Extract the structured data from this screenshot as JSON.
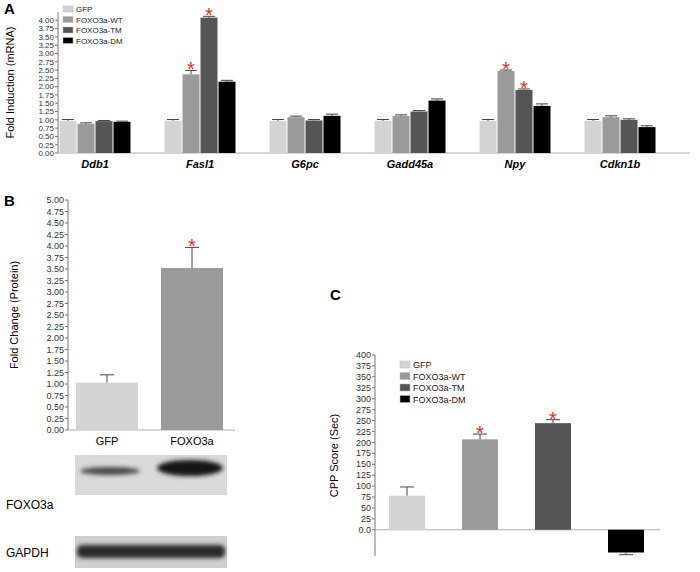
{
  "chart_data": [
    {
      "type": "bar",
      "title": "A",
      "categories": [
        "Ddb1",
        "Fasl1",
        "G6pc",
        "Gadd45a",
        "Npy",
        "Cdkn1b"
      ],
      "series": [
        {
          "name": "GFP",
          "color": "#d3d3d3",
          "values": [
            0.97,
            0.97,
            0.97,
            0.97,
            0.97,
            0.97
          ],
          "errors": [
            0.04,
            0.04,
            0.04,
            0.04,
            0.04,
            0.04
          ]
        },
        {
          "name": "FOXO3a-WT",
          "color": "#9a9a9a",
          "values": [
            0.88,
            2.37,
            1.08,
            1.12,
            2.47,
            1.08
          ],
          "errors": [
            0.03,
            0.12,
            0.03,
            0.03,
            0.03,
            0.04
          ]
        },
        {
          "name": "FOXO3a-TM",
          "color": "#555555",
          "values": [
            0.96,
            4.08,
            0.98,
            1.25,
            1.9,
            1.0
          ],
          "errors": [
            0.02,
            0.04,
            0.03,
            0.03,
            0.03,
            0.03
          ]
        },
        {
          "name": "FOXO3a-DM",
          "color": "#000000",
          "values": [
            0.94,
            2.15,
            1.12,
            1.58,
            1.42,
            0.78
          ],
          "errors": [
            0.02,
            0.04,
            0.05,
            0.05,
            0.06,
            0.04
          ]
        }
      ],
      "ylim": [
        0,
        4.25
      ],
      "yticks": [
        {
          "value": 0,
          "label": "0.00"
        },
        {
          "value": 0.25,
          "label": "0.25"
        },
        {
          "value": 0.5,
          "label": "0.50"
        },
        {
          "value": 0.75,
          "label": "0.75"
        },
        {
          "value": 1,
          "label": "1.00"
        },
        {
          "value": 1.25,
          "label": "1.25"
        },
        {
          "value": 1.5,
          "label": "1.50"
        },
        {
          "value": 1.75,
          "label": "1.75"
        },
        {
          "value": 2,
          "label": "2.00"
        },
        {
          "value": 2.25,
          "label": "2.25"
        },
        {
          "value": 2.5,
          "label": "2.50"
        },
        {
          "value": 2.75,
          "label": "2.75"
        },
        {
          "value": 3,
          "label": "3.00"
        },
        {
          "value": 3.25,
          "label": "3.25"
        },
        {
          "value": 3.5,
          "label": "3.50"
        },
        {
          "value": 3.75,
          "label": "3.75"
        },
        {
          "value": 4,
          "label": "4.00"
        }
      ],
      "ylabel": "Fold Induction (mRNA)",
      "legend": "top-left",
      "annotations": [
        {
          "text": "*",
          "series": 1,
          "category": 1
        },
        {
          "text": "*",
          "series": 2,
          "category": 1
        },
        {
          "text": "*",
          "series": 1,
          "category": 4
        },
        {
          "text": "*",
          "series": 2,
          "category": 4
        }
      ]
    },
    {
      "type": "bar",
      "title": "B",
      "categories": [
        "GFP",
        "FOXO3a"
      ],
      "values": [
        1.03,
        3.52
      ],
      "errors": [
        0.17,
        0.45
      ],
      "colors": [
        "#d3d3d3",
        "#9a9a9a"
      ],
      "ylim": [
        0,
        5
      ],
      "yticks": [
        {
          "value": 0,
          "label": "0.00"
        },
        {
          "value": 0.25,
          "label": "0.25"
        },
        {
          "value": 0.5,
          "label": "0.50"
        },
        {
          "value": 0.75,
          "label": "0.75"
        },
        {
          "value": 1,
          "label": "1.00"
        },
        {
          "value": 1.25,
          "label": "1.25"
        },
        {
          "value": 1.5,
          "label": "1.50"
        },
        {
          "value": 1.75,
          "label": "1.75"
        },
        {
          "value": 2,
          "label": "2.00"
        },
        {
          "value": 2.25,
          "label": "2.25"
        },
        {
          "value": 2.5,
          "label": "2.50"
        },
        {
          "value": 2.75,
          "label": "2.75"
        },
        {
          "value": 3,
          "label": "3.00"
        },
        {
          "value": 3.25,
          "label": "3.25"
        },
        {
          "value": 3.5,
          "label": "3.50"
        },
        {
          "value": 3.75,
          "label": "3.75"
        },
        {
          "value": 4,
          "label": "4.00"
        },
        {
          "value": 4.25,
          "label": "4.25"
        },
        {
          "value": 4.5,
          "label": "4.50"
        },
        {
          "value": 4.75,
          "label": "4.75"
        },
        {
          "value": 5,
          "label": "5.00"
        }
      ],
      "ylabel": "Fold Change (Protein)",
      "annotations": [
        {
          "text": "*",
          "category": 1
        }
      ],
      "blot_labels": [
        "FOXO3a",
        "GAPDH"
      ]
    },
    {
      "type": "bar",
      "title": "C",
      "categories": [
        "GFP",
        "FOXO3a-WT",
        "FOXO3a-TM",
        "FOXO3a-DM"
      ],
      "values": [
        78,
        207,
        244,
        -52
      ],
      "errors": [
        20,
        12,
        8,
        5
      ],
      "colors": [
        "#d3d3d3",
        "#9a9a9a",
        "#555555",
        "#000000"
      ],
      "ylim": [
        -60,
        400
      ],
      "yticks": [
        {
          "value": 0,
          "label": "0.0"
        },
        25,
        50,
        75,
        100,
        125,
        150,
        175,
        200,
        225,
        250,
        275,
        300,
        325,
        350,
        375,
        400
      ],
      "ylabel": "CPP Score (Sec)",
      "legend": "top-left",
      "tick_labels": "y",
      "annotations": [
        {
          "text": "*",
          "category": 1
        },
        {
          "text": "*",
          "category": 2
        }
      ]
    }
  ]
}
